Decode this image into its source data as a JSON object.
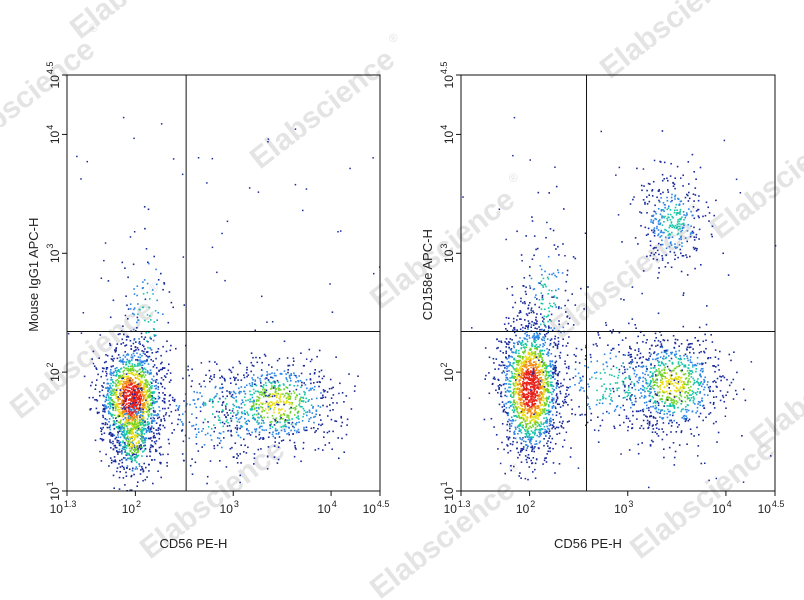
{
  "watermark": {
    "text": "Elabscience",
    "mark": "®"
  },
  "chart_data": [
    {
      "type": "scatter",
      "subtype": "density flow cytometry dot plot",
      "title": "",
      "xlabel": "CD56 PE-H",
      "ylabel": "Mouse IgG1 APC-H",
      "x_scale": "log10",
      "y_scale": "log10",
      "xlim": [
        20,
        31623
      ],
      "ylim": [
        10,
        31623
      ],
      "x_ticks": [
        {
          "value": 20,
          "base": "10",
          "exp": "1.3"
        },
        {
          "value": 100,
          "base": "10",
          "exp": "2"
        },
        {
          "value": 1000,
          "base": "10",
          "exp": "3"
        },
        {
          "value": 10000,
          "base": "10",
          "exp": "4"
        },
        {
          "value": 31623,
          "base": "10",
          "exp": "4.5"
        }
      ],
      "y_ticks": [
        {
          "value": 10,
          "base": "10",
          "exp": "1"
        },
        {
          "value": 100,
          "base": "10",
          "exp": "2"
        },
        {
          "value": 1000,
          "base": "10",
          "exp": "3"
        },
        {
          "value": 10000,
          "base": "10",
          "exp": "4"
        },
        {
          "value": 31623,
          "base": "10",
          "exp": "4.5"
        }
      ],
      "quadrant_gate": {
        "x": 330,
        "y": 220
      },
      "populations": [
        {
          "cx": 90,
          "cy": 60,
          "sdx": 0.16,
          "sdy": 0.22,
          "n": 1500,
          "peak": "red"
        },
        {
          "cx": 95,
          "cy": 28,
          "sdx": 0.1,
          "sdy": 0.18,
          "n": 350,
          "peak": "green"
        },
        {
          "cx": 2700,
          "cy": 55,
          "sdx": 0.3,
          "sdy": 0.18,
          "n": 700,
          "peak": "green"
        },
        {
          "cx": 800,
          "cy": 45,
          "sdx": 0.4,
          "sdy": 0.22,
          "n": 300,
          "peak": "blue"
        },
        {
          "cx": 130,
          "cy": 300,
          "sdx": 0.15,
          "sdy": 0.35,
          "n": 120,
          "peak": "blue"
        }
      ]
    },
    {
      "type": "scatter",
      "subtype": "density flow cytometry dot plot",
      "title": "",
      "xlabel": "CD56 PE-H",
      "ylabel": "CD158e APC-H",
      "x_scale": "log10",
      "y_scale": "log10",
      "xlim": [
        20,
        31623
      ],
      "ylim": [
        10,
        31623
      ],
      "x_ticks": [
        {
          "value": 20,
          "base": "10",
          "exp": "1.3"
        },
        {
          "value": 100,
          "base": "10",
          "exp": "2"
        },
        {
          "value": 1000,
          "base": "10",
          "exp": "3"
        },
        {
          "value": 10000,
          "base": "10",
          "exp": "4"
        },
        {
          "value": 31623,
          "base": "10",
          "exp": "4.5"
        }
      ],
      "y_ticks": [
        {
          "value": 10,
          "base": "10",
          "exp": "1"
        },
        {
          "value": 100,
          "base": "10",
          "exp": "2"
        },
        {
          "value": 1000,
          "base": "10",
          "exp": "3"
        },
        {
          "value": 10000,
          "base": "10",
          "exp": "4"
        },
        {
          "value": 31623,
          "base": "10",
          "exp": "4.5"
        }
      ],
      "quadrant_gate": {
        "x": 380,
        "y": 220
      },
      "populations": [
        {
          "cx": 100,
          "cy": 75,
          "sdx": 0.15,
          "sdy": 0.28,
          "n": 1700,
          "peak": "red"
        },
        {
          "cx": 2800,
          "cy": 80,
          "sdx": 0.25,
          "sdy": 0.2,
          "n": 800,
          "peak": "green"
        },
        {
          "cx": 2800,
          "cy": 1900,
          "sdx": 0.18,
          "sdy": 0.2,
          "n": 350,
          "peak": "blue"
        },
        {
          "cx": 700,
          "cy": 80,
          "sdx": 0.35,
          "sdy": 0.22,
          "n": 300,
          "peak": "blue"
        },
        {
          "cx": 150,
          "cy": 400,
          "sdx": 0.15,
          "sdy": 0.35,
          "n": 150,
          "peak": "blue"
        }
      ]
    }
  ]
}
